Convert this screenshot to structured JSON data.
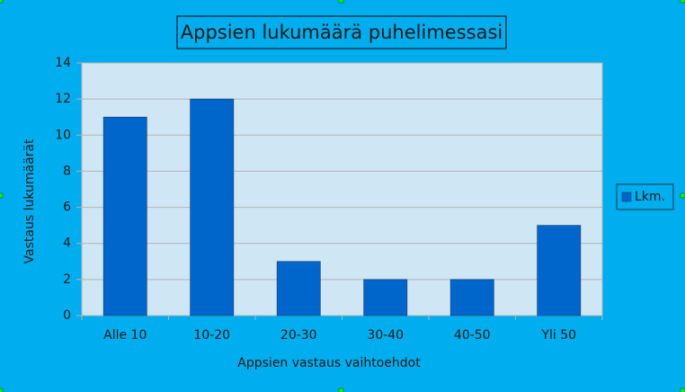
{
  "chart_data": {
    "type": "bar",
    "title": "Appsien lukumäärä puhelimessasi",
    "x_label": "Appsien vastaus vaihtoehdot",
    "y_label": "Vastaus lukumäärät",
    "categories": [
      "Alle 10",
      "10-20",
      "20-30",
      "30-40",
      "40-50",
      "Yli 50"
    ],
    "series": [
      {
        "name": "Lkm.",
        "color": "#0066cc",
        "values": [
          11,
          12,
          3,
          2,
          2,
          5
        ]
      }
    ],
    "ylim": [
      0,
      14
    ],
    "yticks": [
      0,
      2,
      4,
      6,
      8,
      10,
      12,
      14
    ],
    "grid": true,
    "legend": "right"
  }
}
